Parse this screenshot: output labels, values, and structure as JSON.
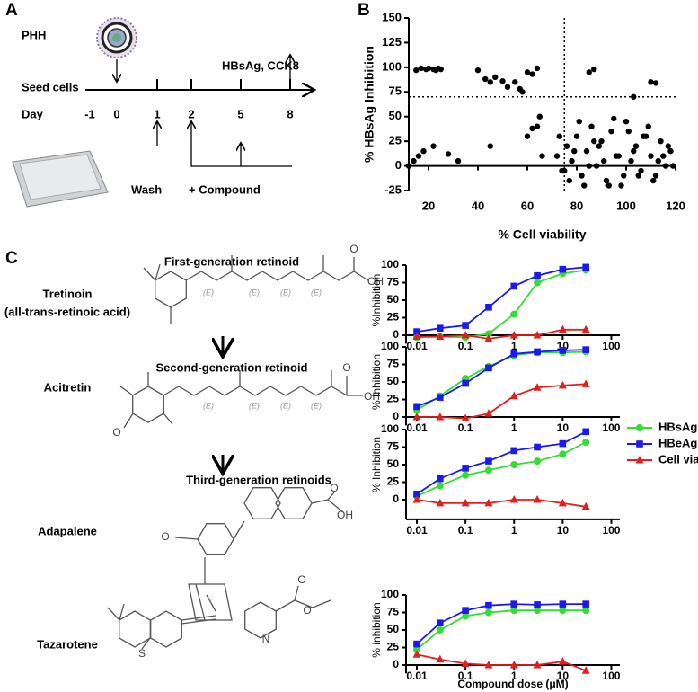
{
  "panel_labels": [
    "A",
    "B",
    "C"
  ],
  "timeline": {
    "cell_label": "PHH",
    "seed_label": "Seed cells",
    "day_label": "Day",
    "days": [
      "-1",
      "0",
      "1",
      "2",
      "5",
      "8"
    ],
    "readout_label": "HBsAg, CCK8",
    "wash_label": "Wash",
    "compound_label": "+ Compound"
  },
  "compounds": [
    {
      "generation": "First-generation retinoid",
      "name": "Tretinoin",
      "alias": "(all-trans-retinoic acid)",
      "atoms": [
        "O",
        "OH",
        "(E)",
        "(E)",
        "(E)",
        "(E)"
      ]
    },
    {
      "generation": "Second-generation retinoid",
      "name": "Acitretin",
      "atoms": [
        "O",
        "O",
        "OH",
        "(E)",
        "(E)",
        "(E)",
        "(E)"
      ]
    },
    {
      "generation": "Third-generation retinoids",
      "name": "Adapalene",
      "atoms": [
        "O",
        "OH",
        "O"
      ]
    },
    {
      "name": "Tazarotene",
      "atoms": [
        "O",
        "O",
        "N",
        "S"
      ]
    }
  ],
  "chart_data": [
    {
      "type": "scatter",
      "x_label": "% Cell viability",
      "y_label": "% HBsAg Inhibition",
      "color": "#000000",
      "x": [
        12,
        15,
        17,
        19,
        20,
        22,
        23,
        24,
        25,
        40,
        43,
        45,
        47,
        50,
        52,
        55,
        57,
        58,
        60,
        62,
        64,
        14,
        16,
        18,
        22,
        28,
        32,
        45,
        60,
        62,
        64,
        66,
        65,
        85,
        87,
        103,
        110,
        112,
        72,
        74,
        76,
        78,
        80,
        82,
        84,
        86,
        88,
        90,
        92,
        94,
        96,
        98,
        100,
        102,
        104,
        106,
        108,
        110,
        112,
        114,
        116,
        118,
        73,
        77,
        81,
        85,
        89,
        93,
        97,
        101,
        105,
        109,
        113,
        117,
        75,
        79,
        83,
        87,
        91,
        95,
        99,
        103,
        107,
        111,
        115,
        119
      ],
      "values": [
        0,
        97,
        99,
        98,
        99,
        98,
        97,
        99,
        98,
        97,
        88,
        85,
        90,
        86,
        80,
        85,
        78,
        75,
        95,
        93,
        99,
        5,
        10,
        15,
        20,
        12,
        5,
        20,
        30,
        38,
        40,
        10,
        50,
        95,
        98,
        70,
        85,
        84,
        10,
        -5,
        20,
        5,
        30,
        -10,
        15,
        40,
        0,
        25,
        -15,
        35,
        10,
        -20,
        45,
        5,
        20,
        -5,
        30,
        10,
        -10,
        25,
        0,
        15,
        30,
        -15,
        45,
        0,
        20,
        -20,
        10,
        35,
        -10,
        40,
        5,
        20,
        -5,
        15,
        -20,
        25,
        5,
        48,
        -10,
        15,
        30,
        -15,
        10,
        0
      ],
      "xlim": [
        12,
        120
      ],
      "ylim": [
        -25,
        150
      ],
      "xticks": [
        20,
        40,
        60,
        80,
        100,
        120
      ],
      "yticks": [
        -25,
        0,
        25,
        50,
        75,
        100,
        125,
        150
      ],
      "reference_lines": {
        "x": 75,
        "y": 70
      }
    },
    {
      "type": "line",
      "log_x": true,
      "y_label": "%Inhibition",
      "x_axis_at": 0,
      "x": [
        0.01,
        0.03,
        0.1,
        0.3,
        1,
        3,
        10,
        30
      ],
      "series": [
        {
          "color": "#33dd33",
          "marker": "circle",
          "values": [
            -3,
            -2,
            -3,
            2,
            30,
            75,
            88,
            93
          ]
        },
        {
          "color": "#1a1aee",
          "marker": "square",
          "values": [
            5,
            10,
            14,
            40,
            70,
            85,
            94,
            97
          ]
        },
        {
          "color": "#e02020",
          "marker": "triangle",
          "values": [
            -2,
            -2,
            0,
            -5,
            0,
            0,
            8,
            8
          ]
        }
      ],
      "xlim": [
        0.006,
        150
      ],
      "ylim": [
        -12,
        100
      ],
      "xticks": [
        0.01,
        0.1,
        1,
        10,
        100
      ],
      "yticks": [
        0,
        25,
        50,
        75,
        100
      ]
    },
    {
      "type": "line",
      "log_x": true,
      "y_label": "% Inhibition",
      "x_axis_at": 0,
      "legend": "right",
      "x": [
        0.01,
        0.03,
        0.1,
        0.3,
        1,
        3,
        10,
        30
      ],
      "series": [
        {
          "name": "HBsAg",
          "color": "#33dd33",
          "marker": "circle",
          "values": [
            10,
            30,
            55,
            72,
            88,
            92,
            92,
            93
          ]
        },
        {
          "name": "HBeAg",
          "color": "#1a1aee",
          "marker": "square",
          "values": [
            15,
            28,
            48,
            70,
            90,
            93,
            95,
            96
          ]
        },
        {
          "name": "Cell viability",
          "color": "#e02020",
          "marker": "triangle",
          "values": [
            0,
            0,
            -2,
            5,
            30,
            42,
            45,
            47
          ]
        }
      ],
      "xlim": [
        0.006,
        150
      ],
      "ylim": [
        -12,
        100
      ],
      "xticks": [
        0.01,
        0.1,
        1,
        10,
        100
      ],
      "yticks": [
        0,
        25,
        50,
        75,
        100
      ]
    },
    {
      "type": "line",
      "log_x": true,
      "y_label": "% Inhibition",
      "x": [
        0.01,
        0.03,
        0.1,
        0.3,
        1,
        3,
        10,
        30
      ],
      "series": [
        {
          "color": "#33dd33",
          "marker": "circle",
          "values": [
            5,
            20,
            35,
            42,
            50,
            55,
            65,
            82
          ]
        },
        {
          "color": "#1a1aee",
          "marker": "square",
          "values": [
            8,
            30,
            45,
            55,
            70,
            75,
            80,
            97
          ]
        },
        {
          "color": "#e02020",
          "marker": "triangle",
          "values": [
            0,
            -5,
            -5,
            -5,
            0,
            0,
            -5,
            -10
          ]
        }
      ],
      "xlim": [
        0.006,
        150
      ],
      "ylim": [
        -28,
        100
      ],
      "xticks": [
        0.01,
        0.1,
        1,
        10,
        100
      ],
      "yticks": [
        0,
        25,
        50,
        75,
        100
      ]
    },
    {
      "type": "line",
      "log_x": true,
      "y_label": "% inhibition",
      "x_label": "Compound dose (μM)",
      "x_axis_at": 0,
      "x": [
        0.01,
        0.03,
        0.1,
        0.3,
        1,
        3,
        10,
        30
      ],
      "series": [
        {
          "color": "#33dd33",
          "marker": "circle",
          "values": [
            22,
            50,
            70,
            75,
            78,
            78,
            78,
            78
          ]
        },
        {
          "color": "#1a1aee",
          "marker": "square",
          "values": [
            30,
            60,
            78,
            85,
            87,
            86,
            87,
            87
          ]
        },
        {
          "color": "#e02020",
          "marker": "triangle",
          "values": [
            15,
            8,
            2,
            0,
            0,
            0,
            5,
            -8
          ]
        }
      ],
      "xlim": [
        0.006,
        150
      ],
      "ylim": [
        -12,
        100
      ],
      "xticks": [
        0.01,
        0.1,
        1,
        10,
        100
      ],
      "yticks": [
        0,
        25,
        50,
        75,
        100
      ]
    }
  ]
}
